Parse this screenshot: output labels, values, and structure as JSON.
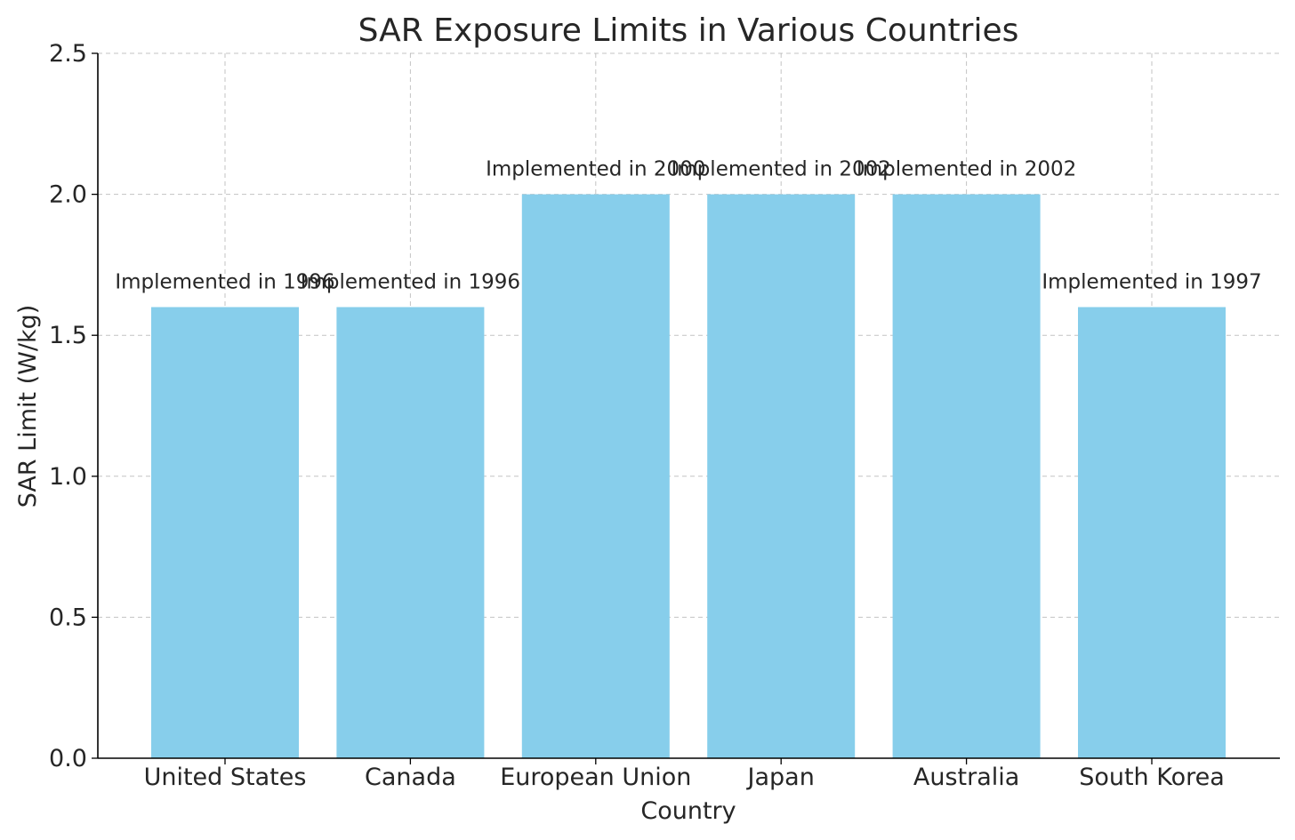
{
  "chart_data": {
    "type": "bar",
    "title": "SAR Exposure Limits in Various Countries",
    "xlabel": "Country",
    "ylabel": "SAR Limit (W/kg)",
    "categories": [
      "United States",
      "Canada",
      "European Union",
      "Japan",
      "Australia",
      "South Korea"
    ],
    "values": [
      1.6,
      1.6,
      2.0,
      2.0,
      2.0,
      1.6
    ],
    "annotations": [
      "Implemented in 1996",
      "Implemented in 1996",
      "Implemented in 2000",
      "Implemented in 2002",
      "Implemented in 2002",
      "Implemented in 1997"
    ],
    "ylim": [
      0,
      2.5
    ],
    "yticks": [
      0.0,
      0.5,
      1.0,
      1.5,
      2.0,
      2.5
    ],
    "ytick_labels": [
      "0.0",
      "0.5",
      "1.0",
      "1.5",
      "2.0",
      "2.5"
    ],
    "grid": true,
    "bar_color": "#87CEEB"
  }
}
